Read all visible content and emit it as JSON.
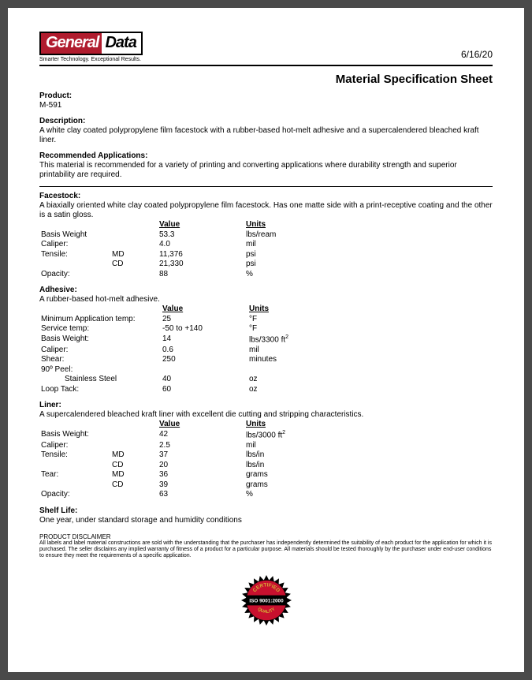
{
  "colors": {
    "brand_red": "#b01c2e",
    "seal_red": "#c8102e",
    "seal_black": "#000000",
    "seal_gold": "#d4af37",
    "text": "#000000",
    "page_bg": "#ffffff",
    "viewer_bg": "#4a4a4a"
  },
  "logo": {
    "part1": "General",
    "part2": "Data",
    "tagline": "Smarter Technology. Exceptional Results."
  },
  "date": "6/16/20",
  "doc_title": "Material Specification Sheet",
  "product": {
    "label": "Product:",
    "value": "M-591"
  },
  "description": {
    "label": "Description:",
    "text": "A white clay coated polypropylene film facestock with a rubber-based hot-melt adhesive and a supercalendered bleached kraft liner."
  },
  "recommended": {
    "label": "Recommended Applications:",
    "text": "This material is recommended for a variety of printing and converting applications where durability strength and superior printability are required."
  },
  "headers": {
    "value": "Value",
    "units": "Units"
  },
  "facestock": {
    "label": "Facestock:",
    "text": "A biaxially oriented white clay coated polypropylene film facestock. Has one matte side with a print-receptive coating and the other is a satin gloss.",
    "rows": [
      {
        "prop": "Basis Weight",
        "dir": "",
        "value": "53.3",
        "units": "lbs/ream"
      },
      {
        "prop": "Caliper:",
        "dir": "",
        "value": "4.0",
        "units": "mil"
      },
      {
        "prop": "Tensile:",
        "dir": "MD",
        "value": "11,376",
        "units": "psi"
      },
      {
        "prop": "",
        "dir": "CD",
        "value": "21,330",
        "units": "psi"
      },
      {
        "prop": "Opacity:",
        "dir": "",
        "value": "88",
        "units": "%"
      }
    ]
  },
  "adhesive": {
    "label": "Adhesive:",
    "text": "A rubber-based hot-melt adhesive.",
    "rows": [
      {
        "prop": "Minimum Application temp:",
        "dir": "",
        "value": "25",
        "units": "°F"
      },
      {
        "prop": "Service temp:",
        "dir": "",
        "value": "-50 to +140",
        "units": "°F"
      },
      {
        "prop": "Basis Weight:",
        "dir": "",
        "value": "14",
        "units": "lbs/3300 ft²"
      },
      {
        "prop": "Caliper:",
        "dir": "",
        "value": "0.6",
        "units": "mil"
      },
      {
        "prop": "Shear:",
        "dir": "",
        "value": "250",
        "units": "minutes"
      },
      {
        "prop": "90º Peel:",
        "dir": "",
        "value": "",
        "units": ""
      },
      {
        "prop": "",
        "dir": "Stainless Steel",
        "value": "40",
        "units": "oz"
      },
      {
        "prop": "Loop Tack:",
        "dir": "",
        "value": "60",
        "units": "oz"
      }
    ]
  },
  "liner": {
    "label": "Liner:",
    "text": "A supercalendered bleached kraft liner with excellent die cutting and stripping characteristics.",
    "rows": [
      {
        "prop": "Basis Weight:",
        "dir": "",
        "value": "42",
        "units": "lbs/3000 ft²"
      },
      {
        "prop": "Caliper:",
        "dir": "",
        "value": "2.5",
        "units": "mil"
      },
      {
        "prop": "Tensile:",
        "dir": "MD",
        "value": "37",
        "units": "lbs/in"
      },
      {
        "prop": "",
        "dir": "CD",
        "value": "20",
        "units": "lbs/in"
      },
      {
        "prop": "Tear:",
        "dir": "MD",
        "value": "36",
        "units": "grams"
      },
      {
        "prop": "",
        "dir": "CD",
        "value": "39",
        "units": "grams"
      },
      {
        "prop": "Opacity:",
        "dir": "",
        "value": "63",
        "units": "%"
      }
    ]
  },
  "shelf": {
    "label": "Shelf Life:",
    "text": "One year, under standard storage and humidity conditions"
  },
  "disclaimer": {
    "head": "PRODUCT DISCLAIMER",
    "text": "All labels and label material constructions are sold with the understanding that the purchaser has independently determined the suitability of each product for the application for which it is purchased. The seller disclaims any implied warranty of fitness of a product for a particular purpose. All materials should be tested thoroughly by the purchaser under end-user conditions to ensure they meet the requirements of a specific application."
  },
  "seal": {
    "top": "CERTIFIED",
    "mid": "ISO 9001:2000",
    "bot": "QUALITY"
  }
}
